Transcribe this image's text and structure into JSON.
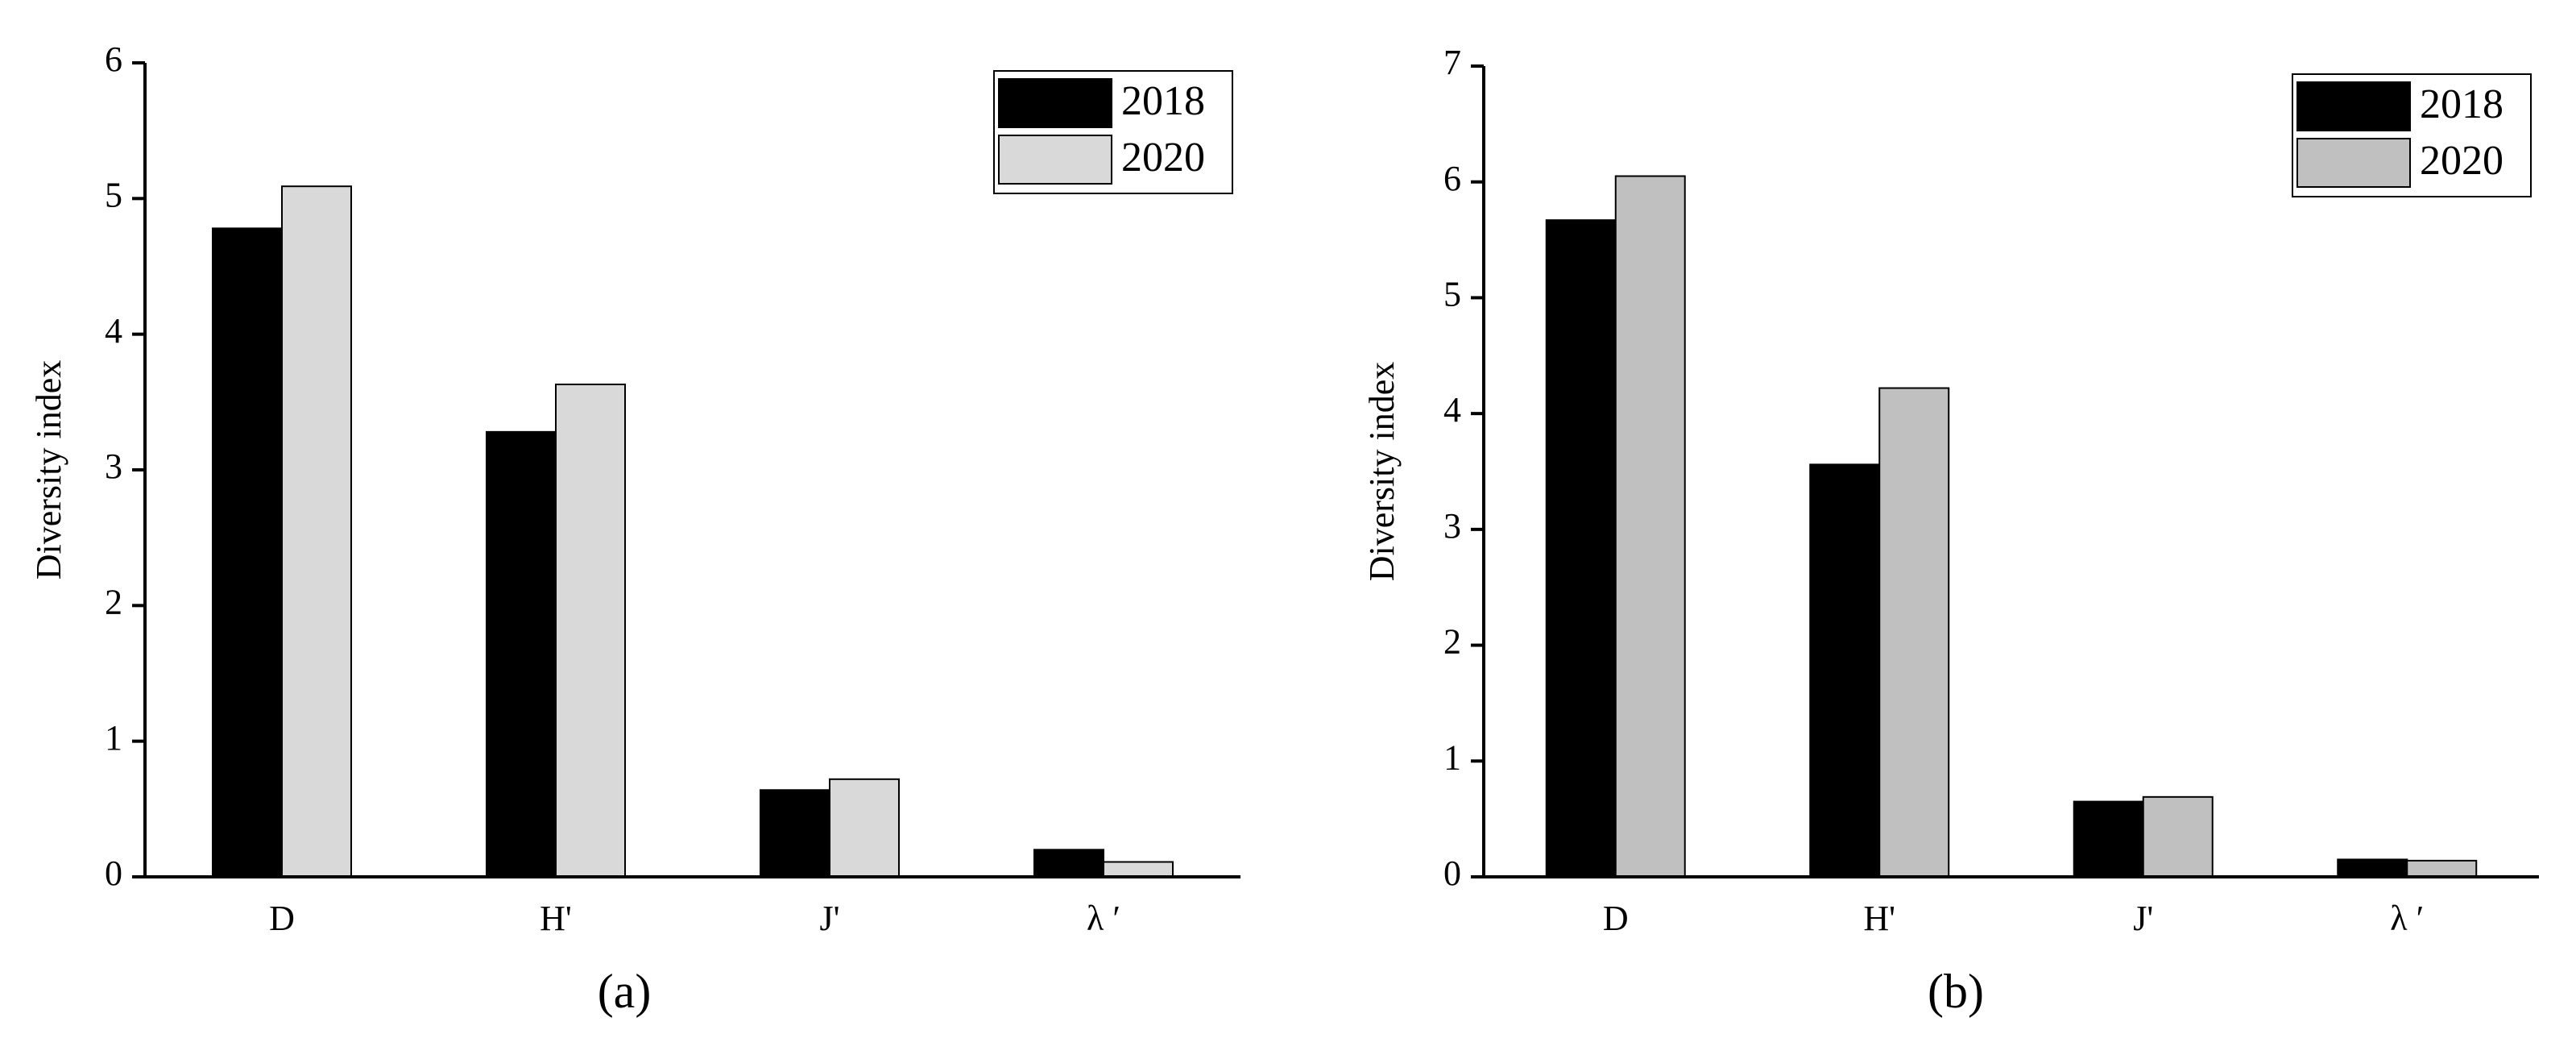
{
  "chart_data": [
    {
      "type": "bar",
      "caption": "(a)",
      "y_label": "Diversity index",
      "categories": [
        "D",
        "H'",
        "J'",
        "λ ′"
      ],
      "series": [
        {
          "name": "2018",
          "color": "#000000",
          "values": [
            4.78,
            3.28,
            0.64,
            0.2
          ]
        },
        {
          "name": "2020",
          "color": "#d9d9d9",
          "values": [
            5.09,
            3.63,
            0.72,
            0.11
          ]
        }
      ],
      "ylim": [
        0,
        6
      ],
      "yticks": [
        0,
        1,
        2,
        3,
        4,
        5,
        6
      ],
      "legend": "upper right"
    },
    {
      "type": "bar",
      "caption": "(b)",
      "y_label": "Diversity index",
      "categories": [
        "D",
        "H'",
        "J'",
        "λ ′"
      ],
      "series": [
        {
          "name": "2018",
          "color": "#000000",
          "values": [
            5.67,
            3.56,
            0.65,
            0.15
          ]
        },
        {
          "name": "2020",
          "color": "#c0c0c0",
          "values": [
            6.05,
            4.22,
            0.69,
            0.14
          ]
        }
      ],
      "ylim": [
        0,
        7
      ],
      "yticks": [
        0,
        1,
        2,
        3,
        4,
        5,
        6,
        7
      ],
      "legend": "upper right"
    }
  ]
}
